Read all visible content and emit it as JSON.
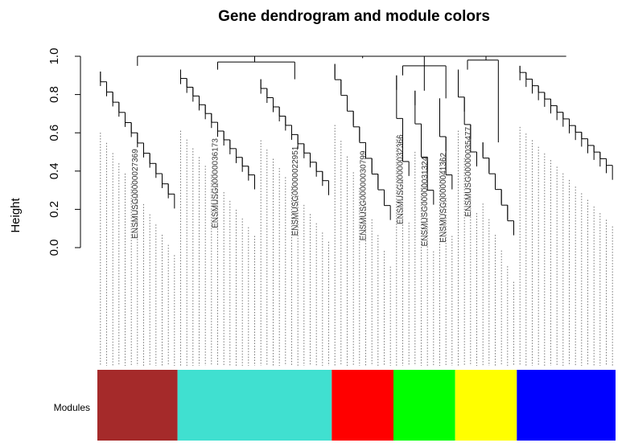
{
  "chart_data": {
    "type": "dendrogram",
    "title": "Gene dendrogram and module colors",
    "ylabel": "Height",
    "ylim": [
      0,
      1.0
    ],
    "y_ticks": [
      "0.0",
      "0.2",
      "0.4",
      "0.6",
      "0.8",
      "1.0"
    ],
    "color_bar_label": "Modules",
    "modules": [
      {
        "color": "#a52a2a",
        "clusters": [
          {
            "leaves": 13,
            "top": 0.92,
            "bottom": 0.28,
            "merge": 0.95
          }
        ]
      },
      {
        "color": "#40e0d0",
        "clusters": [
          {
            "leaves": 13,
            "top": 0.93,
            "bottom": 0.38,
            "merge": 0.97
          },
          {
            "leaves": 12,
            "top": 0.88,
            "bottom": 0.35,
            "merge": 0.97
          }
        ]
      },
      {
        "color": "#ff0000",
        "clusters": [
          {
            "leaves": 10,
            "top": 0.96,
            "bottom": 0.22,
            "merge": 0.99
          }
        ]
      },
      {
        "color": "#00ff00",
        "clusters": [
          {
            "leaves": 3,
            "top": 0.9,
            "bottom": 0.45,
            "merge": 0.95
          },
          {
            "leaves": 4,
            "top": 0.82,
            "bottom": 0.3,
            "merge": 0.95
          },
          {
            "leaves": 3,
            "top": 0.78,
            "bottom": 0.38,
            "merge": 0.95
          }
        ]
      },
      {
        "color": "#ffff00",
        "clusters": [
          {
            "leaves": 4,
            "top": 0.93,
            "bottom": 0.5,
            "merge": 0.98
          },
          {
            "leaves": 6,
            "top": 0.55,
            "bottom": 0.14,
            "merge": 0.98
          }
        ]
      },
      {
        "color": "#0000ff",
        "clusters": [
          {
            "leaves": 16,
            "top": 0.95,
            "bottom": 0.43,
            "merge": 1.0
          }
        ]
      }
    ],
    "visible_leaf_labels": [
      "ENSMUSG00000027369",
      "ENSMUSG00000036173",
      "ENSMUSG00000022951",
      "ENSMUSG00000030799",
      "ENSMUSG00000032366",
      "ENSMUSG00000031324",
      "ENSMUSG00000041362",
      "ENSMUSG00000035477"
    ]
  }
}
